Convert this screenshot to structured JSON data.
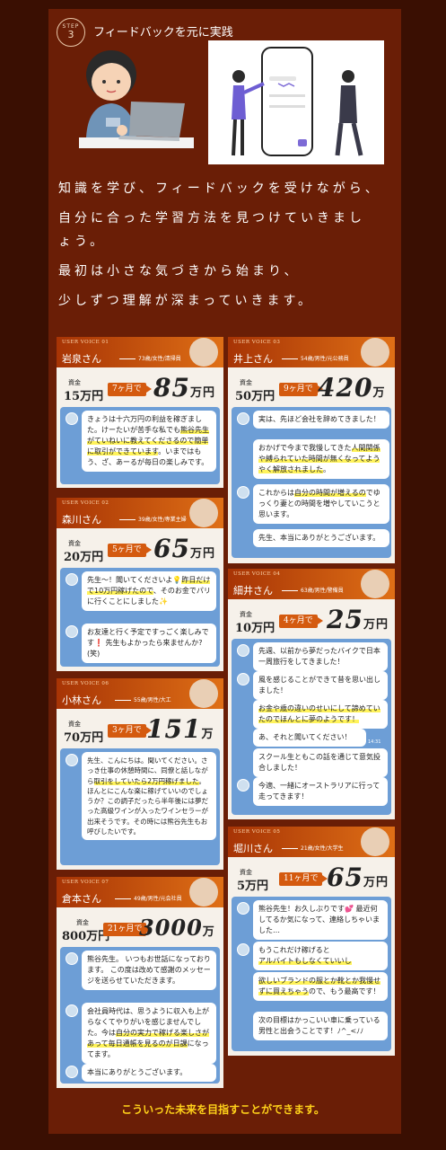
{
  "step": {
    "label": "STEP",
    "number": "3",
    "title": "フィードバックを元に実践"
  },
  "intro": {
    "line1": "知識を学び、フィードバックを受けながら、",
    "line2": "自分に合った学習方法を見つけていきまし",
    "line3": "ょう。",
    "line4": "最初は小さな気づきから始まり、",
    "line5": "少しずつ理解が深まっていきます。"
  },
  "capital_label": "資金",
  "cards": {
    "c1": {
      "voice": "USER VOICE 01",
      "name": "岩泉さん",
      "demo": "73歳/女性/清掃員",
      "from": "15万円",
      "period": "7ヶ月で",
      "to": "85",
      "unit": "万円",
      "m1a": "きょうは十六万円の利益を稼ぎました。けーたいが苦手な私でも",
      "m1b": "熊谷先生がていねいに教えてくださるので簡単に取引ができています",
      "m1c": "。いまではもう、ざ、あーるが毎日の楽しみです。"
    },
    "c2": {
      "voice": "USER VOICE 03",
      "name": "井上さん",
      "demo": "54歳/男性/元公務員",
      "from": "50万円",
      "period": "9ヶ月で",
      "to": "420",
      "unit": "万円",
      "m1": "実は、先ほど会社を辞めてきました！",
      "m2a": "おかげで今まで我慢してきた",
      "m2b": "人間関係や縛られていた時間が無くなってようやく解放されました",
      "m2c": "。",
      "m3a": "これからは",
      "m3b": "自分の時間が増えるの",
      "m3c": "でゆっくり妻との時間を増やしていこうと思います。",
      "m4": "先生、本当にありがとうございます。"
    },
    "c3": {
      "voice": "USER VOICE 02",
      "name": "森川さん",
      "demo": "39歳/女性/専業主婦",
      "from": "20万円",
      "period": "5ヶ月で",
      "to": "65",
      "unit": "万円",
      "m1a": "先生〜！聞いてくださいよ💡",
      "m1b": "昨日だけで10万円稼げたので",
      "m1c": "、そのお金でパリに行くことにしました✨",
      "m2": "お友達と行く予定ですっごく楽しみです❗ 先生もよかったら来ませんか?(笑)"
    },
    "c4": {
      "voice": "USER VOICE 04",
      "name": "細井さん",
      "demo": "63歳/男性/警備員",
      "from": "10万円",
      "period": "4ヶ月で",
      "to": "25",
      "unit": "万円",
      "m1": "先週、以前から夢だったバイクで日本一周旅行をしてきました！",
      "m2": "風を感じることができて昔を思い出しました！",
      "m3": "お金や歳の違いのせいにして諦めていたのでほんとに夢のようです！",
      "m4": "あ、それと聞いてください！",
      "t4": "14:31",
      "m5": "スクール生ともこの話を通じて意気投合しました！",
      "m6": "今適、一緒にオーストラリアに行って走ってきます！"
    },
    "c5": {
      "voice": "USER VOICE 06",
      "name": "小林さん",
      "demo": "55歳/男性/大工",
      "from": "70万円",
      "period": "3ヶ月で",
      "to": "151",
      "unit": "万円",
      "m1a": "先生、こんにちは。聞いてください。さっき仕事の休憩時間に、同僚と話しながら",
      "m1b": "取引をしていたら2万円稼げました",
      "m1c": "。ほんとにこんな楽に稼げていいのでしょうか？この調子だったら半年後には夢だった高級ワインが入ったワインセラーが出来そうです。その時には熊谷先生もお呼びしたいです。"
    },
    "c6": {
      "voice": "USER VOICE 05",
      "name": "堀川さん",
      "demo": "21歳/女性/大学生",
      "from": "5万円",
      "period": "11ヶ月で",
      "to": "65",
      "unit": "万円",
      "m1": "熊谷先生！お久しぶりです💕 最近何してるか気になって、連絡しちゃいました…",
      "m2a": "もうこれだけ稼げると",
      "m2b": "アルバイトもしなくていいし",
      "m3a": "欲しいブランドの服とか靴とか我慢せずに買えちゃう",
      "m3b": "ので、もう最高です！",
      "m4": "次の目標はかっこいい車に乗っている男性と出会うことです！ﾉ^_<ﾉﾉ"
    },
    "c7": {
      "voice": "USER VOICE 07",
      "name": "倉本さん",
      "demo": "49歳/男性/元会社員",
      "from": "800万円",
      "period": "21ヶ月で",
      "to": "3000",
      "unit": "万円",
      "m1": "熊谷先生。 いつもお世話になっております。 この度は改めて感謝のメッセージを送らせていただきます。",
      "m2a": "会社員時代は、思うように収入も上がらなくてやりがいを感じませんでした。今は",
      "m2b": "自分の実力で稼げる楽しさがあって毎日通帳を見るのが日課",
      "m2c": "になってます。",
      "m3": "本当にありがとうございます。"
    }
  },
  "footer": "こういった未来を目指すことができます。"
}
